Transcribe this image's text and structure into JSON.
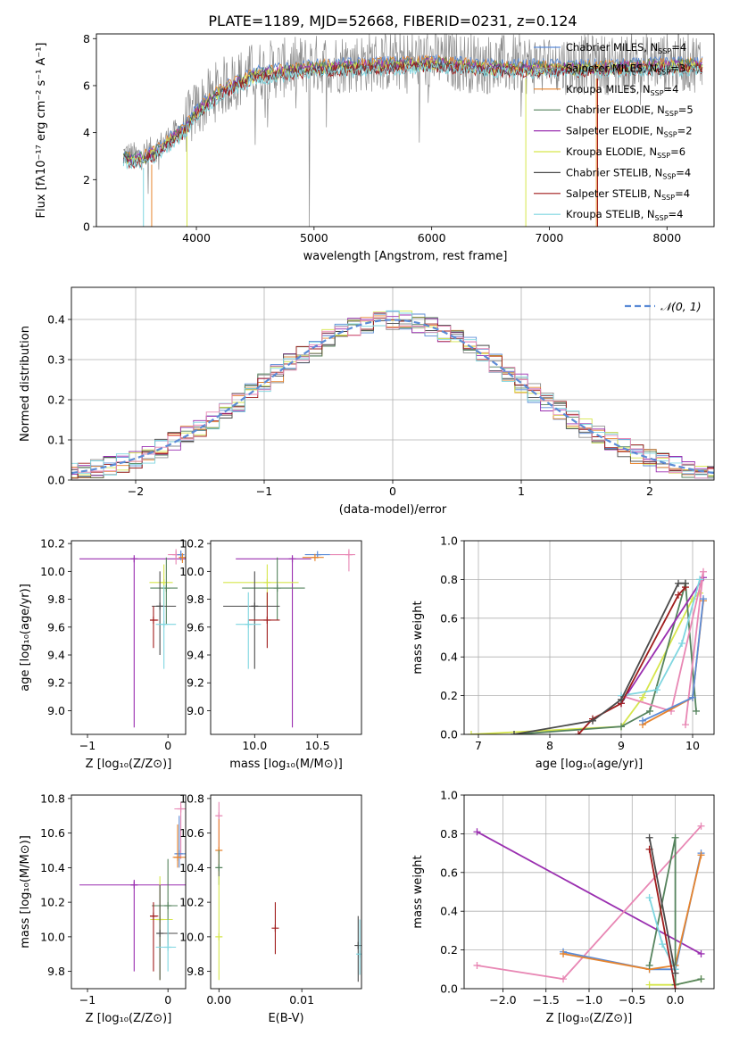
{
  "figure": {
    "title": "PLATE=1189, MJD=52668, FIBERID=0231, z=0.124"
  },
  "colors": {
    "mC": "#5b8bd6",
    "mS": "#8c8c8c",
    "mK": "#e6842e",
    "eC": "#55835d",
    "eS": "#9a2fb0",
    "eK": "#d6e64c",
    "sC": "#4b4b4b",
    "sS": "#a01c1c",
    "sK": "#7fd6e0",
    "pink": "#e887b4"
  },
  "chart_data": [
    {
      "id": "spectrum",
      "type": "line",
      "xlabel": "wavelength [Angstrom, rest frame]",
      "ylabel": "Flux [fλ10⁻¹⁷ erg cm⁻² s⁻¹ A⁻¹]",
      "xlim": [
        3150,
        8400
      ],
      "ylim": [
        0,
        8.2
      ],
      "xticks": [
        4000,
        5000,
        6000,
        7000,
        8000
      ],
      "yticks": [
        0,
        2,
        4,
        6,
        8
      ],
      "continuum": [
        [
          3380,
          3.1
        ],
        [
          3500,
          3.0
        ],
        [
          3650,
          3.3
        ],
        [
          3800,
          3.9
        ],
        [
          3900,
          4.3
        ],
        [
          4000,
          5.0
        ],
        [
          4200,
          5.9
        ],
        [
          4500,
          6.6
        ],
        [
          5000,
          6.9
        ],
        [
          5500,
          7.0
        ],
        [
          6000,
          7.1
        ],
        [
          6500,
          6.9
        ],
        [
          7000,
          6.9
        ],
        [
          7500,
          6.9
        ],
        [
          8000,
          7.0
        ],
        [
          8300,
          7.0
        ]
      ],
      "legend_position": "upper-right",
      "series": [
        {
          "name": "Chabrier MILES, N",
          "sub": "SSP",
          "count": "=4",
          "color": "mC"
        },
        {
          "name": "Salpeter MILES, N",
          "sub": "SSP",
          "count": "=3",
          "color": "mS"
        },
        {
          "name": "Kroupa MILES, N",
          "sub": "SSP",
          "count": "=4",
          "color": "mK"
        },
        {
          "name": "Chabrier ELODIE, N",
          "sub": "SSP",
          "count": "=5",
          "color": "eC"
        },
        {
          "name": "Salpeter ELODIE, N",
          "sub": "SSP",
          "count": "=2",
          "color": "eS"
        },
        {
          "name": "Kroupa ELODIE, N",
          "sub": "SSP",
          "count": "=6",
          "color": "eK"
        },
        {
          "name": "Chabrier STELIB, N",
          "sub": "SSP",
          "count": "=4",
          "color": "sC"
        },
        {
          "name": "Salpeter STELIB, N",
          "sub": "SSP",
          "count": "=4",
          "color": "sS"
        },
        {
          "name": "Kroupa STELIB, N",
          "sub": "SSP",
          "count": "=4",
          "color": "sK"
        }
      ]
    },
    {
      "id": "residuals",
      "type": "line",
      "xlabel": "(data-model)/error",
      "ylabel": "Normed distribution",
      "xlim": [
        -2.5,
        2.5
      ],
      "ylim": [
        0,
        0.48
      ],
      "xticks": [
        -2,
        -1,
        0,
        1,
        2
      ],
      "yticks": [
        0.0,
        0.1,
        0.2,
        0.3,
        0.4
      ],
      "legend": "𝒩(0, 1)",
      "legend_position": "upper-right",
      "grid": true
    },
    {
      "id": "age_vs_Z",
      "type": "scatter",
      "xlabel": "Z [log₁₀(Z/Z⊙)]",
      "ylabel": "age  [log₁₀(age/yr)]",
      "xlim": [
        -1.2,
        0.22
      ],
      "ylim": [
        8.83,
        10.22
      ],
      "xticks": [
        -1,
        0
      ],
      "yticks": [
        9.0,
        9.2,
        9.4,
        9.6,
        9.8,
        10.0,
        10.2
      ],
      "points": [
        {
          "x": -0.42,
          "xe": [
            -1.1,
            0.28
          ],
          "y": 10.09,
          "ye": [
            8.88,
            10.1
          ],
          "color": "eS"
        },
        {
          "x": 0.1,
          "y": 10.12,
          "ye": [
            10.05,
            10.16
          ],
          "xe": [
            0.0,
            0.2
          ],
          "color": "pink"
        },
        {
          "x": 0.16,
          "y": 10.12,
          "ye": [
            10.08,
            10.15
          ],
          "color": "mC"
        },
        {
          "x": 0.18,
          "y": 10.1,
          "ye": [
            10.06,
            10.13
          ],
          "color": "mK"
        },
        {
          "x": -0.05,
          "xe": [
            -0.23,
            0.06
          ],
          "y": 9.92,
          "ye": [
            9.75,
            10.05
          ],
          "color": "eK"
        },
        {
          "x": -0.02,
          "xe": [
            -0.22,
            0.12
          ],
          "y": 9.88,
          "ye": [
            9.62,
            10.1
          ],
          "color": "eC"
        },
        {
          "x": -0.1,
          "xe": [
            -0.2,
            0.1
          ],
          "y": 9.75,
          "ye": [
            9.4,
            10.0
          ],
          "color": "sC"
        },
        {
          "x": -0.18,
          "xe": [
            -0.22,
            -0.12
          ],
          "y": 9.65,
          "ye": [
            9.45,
            9.75
          ],
          "color": "sS"
        },
        {
          "x": -0.05,
          "xe": [
            -0.15,
            0.1
          ],
          "y": 9.62,
          "ye": [
            9.3,
            9.9
          ],
          "color": "sK"
        }
      ]
    },
    {
      "id": "age_vs_mass",
      "type": "scatter",
      "xlabel": "mass [log₁₀(M/M⊙)]",
      "ylabel": "",
      "xlim": [
        9.65,
        10.85
      ],
      "ylim": [
        8.83,
        10.22
      ],
      "xticks": [
        10.0,
        10.5
      ],
      "yticks": [
        9.0,
        9.2,
        9.4,
        9.6,
        9.8,
        10.0,
        10.2
      ],
      "points": [
        {
          "x": 10.3,
          "xe": [
            9.85,
            10.45
          ],
          "y": 10.09,
          "ye": [
            8.88,
            10.1
          ],
          "color": "eS"
        },
        {
          "x": 10.75,
          "xe": [
            10.6,
            10.8
          ],
          "y": 10.12,
          "ye": [
            10.0,
            10.16
          ],
          "color": "pink"
        },
        {
          "x": 10.5,
          "xe": [
            10.4,
            10.6
          ],
          "y": 10.12,
          "color": "mC"
        },
        {
          "x": 10.48,
          "xe": [
            10.38,
            10.55
          ],
          "y": 10.1,
          "color": "mK"
        },
        {
          "x": 10.1,
          "xe": [
            9.75,
            10.35
          ],
          "y": 9.92,
          "ye": [
            9.75,
            10.05
          ],
          "color": "eK"
        },
        {
          "x": 10.18,
          "xe": [
            9.9,
            10.4
          ],
          "y": 9.88,
          "ye": [
            9.65,
            10.1
          ],
          "color": "eC"
        },
        {
          "x": 10.0,
          "xe": [
            9.75,
            10.2
          ],
          "y": 9.75,
          "ye": [
            9.3,
            10.0
          ],
          "color": "sC"
        },
        {
          "x": 10.1,
          "xe": [
            9.95,
            10.2
          ],
          "y": 9.65,
          "ye": [
            9.45,
            9.85
          ],
          "color": "sS"
        },
        {
          "x": 9.95,
          "xe": [
            9.85,
            10.05
          ],
          "y": 9.62,
          "ye": [
            9.3,
            9.85
          ],
          "color": "sK"
        }
      ]
    },
    {
      "id": "massweight_vs_age",
      "type": "line",
      "xlabel": "age  [log₁₀(age/yr)]",
      "ylabel": "mass weight",
      "xlim": [
        6.8,
        10.3
      ],
      "ylim": [
        0,
        1.0
      ],
      "xticks": [
        7,
        8,
        9,
        10
      ],
      "yticks": [
        0.0,
        0.2,
        0.4,
        0.6,
        0.8,
        1.0
      ],
      "grid": true,
      "series": [
        {
          "color": "eK",
          "points": [
            [
              6.9,
              0.0
            ],
            [
              9.0,
              0.04
            ],
            [
              9.3,
              0.19
            ],
            [
              10.0,
              0.7
            ],
            [
              10.1,
              0.73
            ]
          ]
        },
        {
          "color": "eC",
          "points": [
            [
              7.5,
              0.0
            ],
            [
              9.0,
              0.04
            ],
            [
              9.4,
              0.12
            ],
            [
              9.9,
              0.78
            ],
            [
              10.05,
              0.12
            ]
          ]
        },
        {
          "color": "eS",
          "points": [
            [
              9.0,
              0.16
            ],
            [
              10.15,
              0.81
            ]
          ]
        },
        {
          "color": "pink",
          "points": [
            [
              9.0,
              0.2
            ],
            [
              9.7,
              0.12
            ],
            [
              10.15,
              0.84
            ],
            [
              9.9,
              0.05
            ]
          ]
        },
        {
          "color": "mK",
          "points": [
            [
              9.3,
              0.05
            ],
            [
              10.0,
              0.19
            ],
            [
              10.15,
              0.69
            ]
          ]
        },
        {
          "color": "mC",
          "points": [
            [
              9.3,
              0.07
            ],
            [
              10.0,
              0.19
            ],
            [
              10.15,
              0.7
            ]
          ]
        },
        {
          "color": "sK",
          "points": [
            [
              9.0,
              0.2
            ],
            [
              9.5,
              0.23
            ],
            [
              9.85,
              0.47
            ],
            [
              10.1,
              0.8
            ]
          ]
        },
        {
          "color": "sS",
          "points": [
            [
              8.4,
              0.0
            ],
            [
              8.6,
              0.08
            ],
            [
              9.0,
              0.16
            ],
            [
              9.8,
              0.72
            ],
            [
              9.9,
              0.76
            ]
          ]
        },
        {
          "color": "sC",
          "points": [
            [
              7.5,
              0.0
            ],
            [
              8.6,
              0.07
            ],
            [
              9.0,
              0.18
            ],
            [
              9.8,
              0.78
            ],
            [
              9.9,
              0.78
            ]
          ]
        }
      ]
    },
    {
      "id": "mass_vs_Z",
      "type": "scatter",
      "xlabel": "Z [log₁₀(Z/Z⊙)]",
      "ylabel": "mass [log₁₀(M/M⊙)]",
      "xlim": [
        -1.2,
        0.22
      ],
      "ylim": [
        9.7,
        10.82
      ],
      "xticks": [
        -1,
        0
      ],
      "yticks": [
        9.8,
        10.0,
        10.2,
        10.4,
        10.6,
        10.8
      ],
      "points": [
        {
          "x": -0.42,
          "xe": [
            -1.1,
            0.28
          ],
          "y": 10.3,
          "ye": [
            9.8,
            10.33
          ],
          "color": "eS"
        },
        {
          "x": 0.16,
          "xe": [
            0.08,
            0.28
          ],
          "y": 10.74,
          "ye": [
            10.45,
            10.78
          ],
          "color": "pink"
        },
        {
          "x": 0.14,
          "xe": [
            0.08,
            0.22
          ],
          "y": 10.48,
          "ye": [
            10.4,
            10.7
          ],
          "color": "mC"
        },
        {
          "x": 0.12,
          "xe": [
            0.06,
            0.22
          ],
          "y": 10.46,
          "ye": [
            10.4,
            10.65
          ],
          "color": "mK"
        },
        {
          "x": -0.1,
          "xe": [
            -0.22,
            0.06
          ],
          "y": 10.1,
          "ye": [
            9.75,
            10.35
          ],
          "color": "eK"
        },
        {
          "x": 0.0,
          "xe": [
            -0.2,
            0.12
          ],
          "y": 10.18,
          "ye": [
            9.95,
            10.45
          ],
          "color": "eC"
        },
        {
          "x": -0.1,
          "xe": [
            -0.14,
            0.12
          ],
          "y": 10.02,
          "ye": [
            9.75,
            10.3
          ],
          "color": "sC"
        },
        {
          "x": -0.18,
          "xe": [
            -0.22,
            -0.12
          ],
          "y": 10.12,
          "ye": [
            9.8,
            10.2
          ],
          "color": "sS"
        },
        {
          "x": 0.0,
          "xe": [
            -0.15,
            0.1
          ],
          "y": 9.94,
          "ye": [
            9.8,
            10.1
          ],
          "color": "sK"
        }
      ]
    },
    {
      "id": "mass_vs_EBV",
      "type": "scatter",
      "xlabel": "E(B-V)",
      "ylabel": "",
      "xlim": [
        -0.001,
        0.0172
      ],
      "ylim": [
        9.7,
        10.82
      ],
      "xticks": [
        0.0,
        0.01
      ],
      "xtick_labels": [
        "0.00",
        "0.01"
      ],
      "yticks": [
        9.8,
        10.0,
        10.2,
        10.4,
        10.6,
        10.8
      ],
      "points": [
        {
          "x": 0.0,
          "y": 10.7,
          "ye": [
            10.35,
            10.78
          ],
          "color": "pink"
        },
        {
          "x": 0.0,
          "y": 10.5,
          "ye": [
            10.35,
            10.68
          ],
          "color": "mK"
        },
        {
          "x": 0.0,
          "y": 10.4,
          "ye": [
            10.3,
            10.5
          ],
          "color": "eC"
        },
        {
          "x": 0.0,
          "y": 10.0,
          "ye": [
            9.75,
            10.35
          ],
          "color": "eK"
        },
        {
          "x": 0.0068,
          "y": 10.05,
          "ye": [
            9.9,
            10.2
          ],
          "color": "sS"
        },
        {
          "x": 0.0168,
          "y": 9.95,
          "ye": [
            9.74,
            10.12
          ],
          "color": "sC"
        },
        {
          "x": 0.017,
          "y": 9.9,
          "ye": [
            9.78,
            10.1
          ],
          "color": "sK"
        }
      ]
    },
    {
      "id": "massweight_vs_Z",
      "type": "line",
      "xlabel": "Z [log₁₀(Z/Z⊙)]",
      "ylabel": "mass weight",
      "xlim": [
        -2.45,
        0.45
      ],
      "ylim": [
        0,
        1.0
      ],
      "xticks": [
        -2.0,
        -1.5,
        -1.0,
        -0.5,
        0.0
      ],
      "yticks": [
        0.0,
        0.2,
        0.4,
        0.6,
        0.8,
        1.0
      ],
      "grid": true,
      "series": [
        {
          "color": "eS",
          "points": [
            [
              -2.3,
              0.81
            ],
            [
              0.3,
              0.18
            ]
          ]
        },
        {
          "color": "pink",
          "points": [
            [
              -2.3,
              0.12
            ],
            [
              -1.3,
              0.05
            ],
            [
              0.3,
              0.84
            ]
          ]
        },
        {
          "color": "mC",
          "points": [
            [
              -1.3,
              0.19
            ],
            [
              -0.3,
              0.1
            ],
            [
              0.0,
              0.1
            ],
            [
              0.3,
              0.7
            ]
          ]
        },
        {
          "color": "mK",
          "points": [
            [
              -1.3,
              0.18
            ],
            [
              -0.3,
              0.1
            ],
            [
              0.0,
              0.12
            ],
            [
              0.3,
              0.69
            ]
          ]
        },
        {
          "color": "eK",
          "points": [
            [
              -0.3,
              0.02
            ],
            [
              0.0,
              0.02
            ],
            [
              0.3,
              0.05
            ]
          ]
        },
        {
          "color": "eC",
          "points": [
            [
              -0.3,
              0.12
            ],
            [
              0.0,
              0.78
            ],
            [
              0.0,
              0.02
            ],
            [
              0.3,
              0.05
            ]
          ]
        },
        {
          "color": "sK",
          "points": [
            [
              -0.3,
              0.47
            ],
            [
              -0.15,
              0.23
            ],
            [
              0.0,
              0.1
            ]
          ]
        },
        {
          "color": "sS",
          "points": [
            [
              -0.3,
              0.72
            ],
            [
              0.0,
              0.0
            ]
          ]
        },
        {
          "color": "sC",
          "points": [
            [
              -0.3,
              0.78
            ],
            [
              0.0,
              0.08
            ]
          ]
        }
      ]
    }
  ]
}
